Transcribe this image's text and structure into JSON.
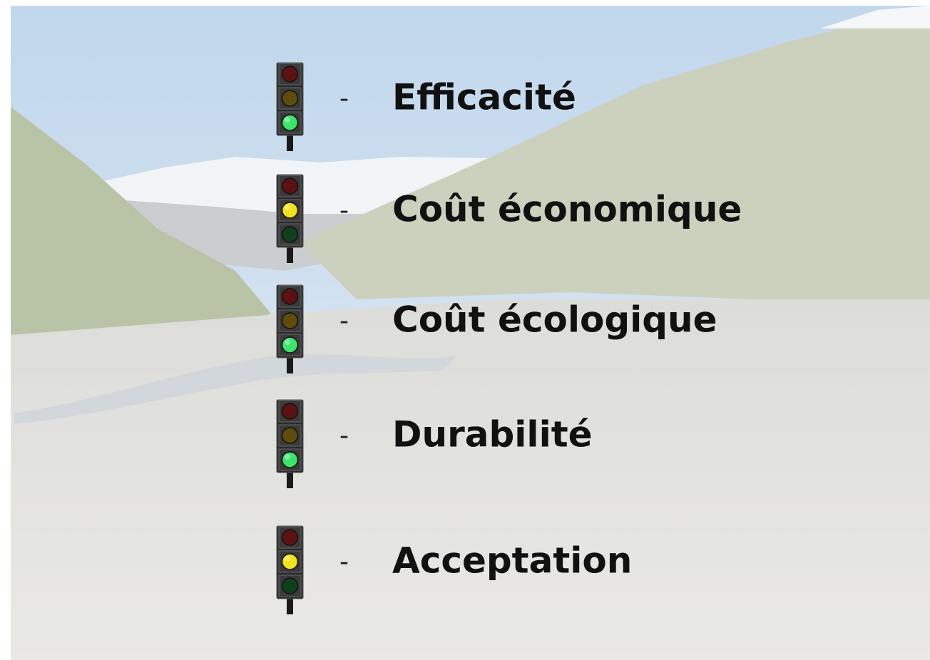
{
  "marker": "-",
  "items": [
    {
      "label": "Efficacité",
      "light": "green"
    },
    {
      "label": "Coût économique",
      "light": "yellow"
    },
    {
      "label": "Coût écologique",
      "light": "green"
    },
    {
      "label": "Durabilité",
      "light": "green"
    },
    {
      "label": "Acceptation",
      "light": "yellow"
    }
  ]
}
